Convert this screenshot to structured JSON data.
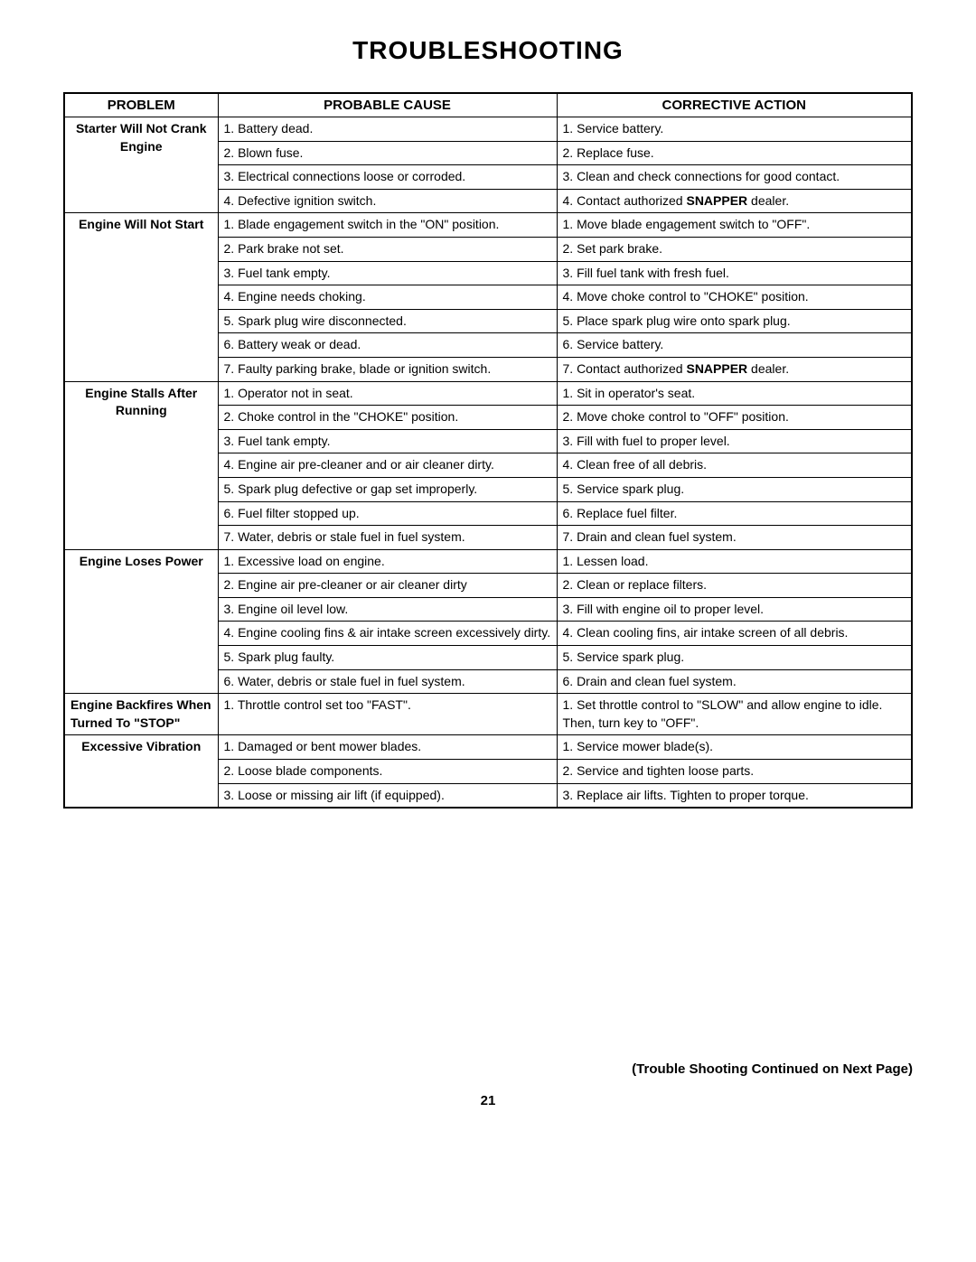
{
  "title": "TROUBLESHOOTING",
  "headers": {
    "problem": "PROBLEM",
    "cause": "PROBABLE CAUSE",
    "action": "CORRECTIVE ACTION"
  },
  "sections": [
    {
      "problem": [
        "Starter Will Not Crank",
        "Engine"
      ],
      "problemAlign": "center",
      "rows": [
        {
          "cause": "1. Battery dead.",
          "action": "1. Service battery."
        },
        {
          "cause": "2. Blown fuse.",
          "action": "2. Replace fuse."
        },
        {
          "cause": "3. Electrical connections loose or corroded.",
          "action": "3. Clean and check connections for good contact."
        },
        {
          "cause": "4. Defective ignition switch.",
          "actionParts": [
            "4. Contact authorized ",
            {
              "bold": "SNAPPER"
            },
            " dealer."
          ]
        }
      ]
    },
    {
      "problem": [
        "Engine Will Not Start"
      ],
      "problemAlign": "center",
      "rows": [
        {
          "cause": "1. Blade engagement switch in the \"ON\" position.",
          "action": "1. Move blade engagement switch to \"OFF\"."
        },
        {
          "cause": "2. Park brake not set.",
          "action": "2. Set park brake."
        },
        {
          "cause": "3. Fuel tank empty.",
          "action": "3. Fill fuel tank with fresh fuel."
        },
        {
          "cause": "4. Engine needs choking.",
          "action": "4. Move choke control to \"CHOKE\" position."
        },
        {
          "cause": "5. Spark plug wire disconnected.",
          "action": "5. Place spark plug wire onto spark plug."
        },
        {
          "cause": "6. Battery weak or dead.",
          "action": "6. Service battery."
        },
        {
          "cause": "7. Faulty parking brake, blade or ignition switch.",
          "actionParts": [
            "7. Contact authorized ",
            {
              "bold": "SNAPPER"
            },
            " dealer."
          ]
        }
      ]
    },
    {
      "problem": [
        "Engine Stalls After",
        "Running"
      ],
      "problemAlign": "center",
      "rows": [
        {
          "cause": "1. Operator not in seat.",
          "action": "1. Sit in operator's seat."
        },
        {
          "cause": "2. Choke control in the \"CHOKE\" position.",
          "action": "2. Move choke control to \"OFF\" position."
        },
        {
          "cause": "3. Fuel tank empty.",
          "action": "3. Fill with fuel to proper level."
        },
        {
          "cause": "4. Engine air pre-cleaner and or air cleaner dirty.",
          "action": "4. Clean free of all debris."
        },
        {
          "cause": "5. Spark plug defective or gap set improperly.",
          "action": "5. Service spark plug."
        },
        {
          "cause": "6. Fuel filter stopped up.",
          "action": "6. Replace fuel filter."
        },
        {
          "cause": "7. Water, debris or stale fuel in fuel system.",
          "action": "7. Drain and clean fuel system."
        }
      ]
    },
    {
      "problem": [
        "Engine Loses Power"
      ],
      "problemAlign": "center",
      "rows": [
        {
          "cause": "1. Excessive load on engine.",
          "action": "1. Lessen load."
        },
        {
          "cause": "2. Engine air pre-cleaner or air cleaner dirty",
          "action": "2. Clean or replace filters."
        },
        {
          "cause": "3. Engine oil level low.",
          "action": "3. Fill with engine oil to proper level."
        },
        {
          "cause": "4. Engine cooling fins & air intake screen excessively dirty.",
          "action": "4. Clean cooling fins, air intake screen of all debris."
        },
        {
          "cause": "5. Spark plug faulty.",
          "action": "5. Service spark plug."
        },
        {
          "cause": "6. Water, debris or stale fuel in fuel system.",
          "action": "6. Drain and clean fuel system."
        }
      ]
    },
    {
      "problem": [
        "Engine Backfires When",
        "Turned To \"STOP\""
      ],
      "problemAlign": "left",
      "rows": [
        {
          "cause": "1. Throttle control set too \"FAST\".",
          "action": "1. Set throttle control to \"SLOW\" and allow engine to idle.  Then, turn key to \"OFF\"."
        }
      ]
    },
    {
      "problem": [
        "Excessive Vibration"
      ],
      "problemAlign": "center",
      "rows": [
        {
          "cause": "1. Damaged or bent mower blades.",
          "action": "1. Service mower blade(s)."
        },
        {
          "cause": "2. Loose blade components.",
          "action": "2. Service and tighten loose parts."
        },
        {
          "cause": "3. Loose or missing air lift (if equipped).",
          "action": "3. Replace air lifts.  Tighten to proper torque."
        }
      ]
    }
  ],
  "footerNote": "(Trouble Shooting Continued on Next Page)",
  "pageNumber": "21"
}
